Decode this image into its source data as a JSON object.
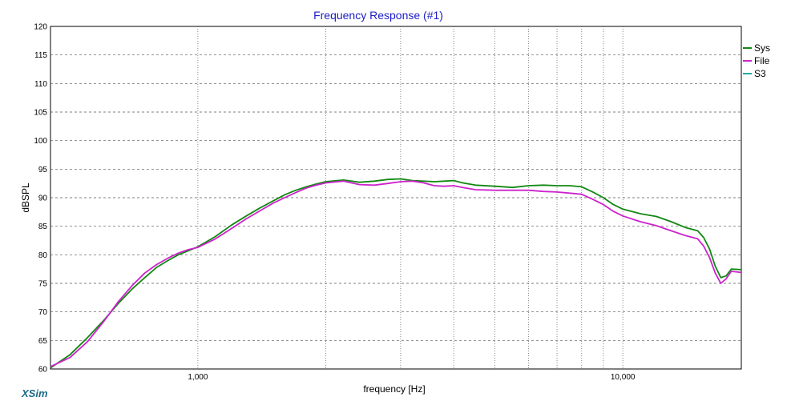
{
  "chart_data": {
    "type": "line",
    "title": "Frequency Response (#1)",
    "xlabel": "frequency [Hz]",
    "ylabel": "dBSPL",
    "x_scale": "log",
    "xlim": [
      450,
      19000
    ],
    "ylim": [
      60,
      120
    ],
    "yticks": [
      60,
      65,
      70,
      75,
      80,
      85,
      90,
      95,
      100,
      105,
      110,
      115,
      120
    ],
    "xtick_labels": [
      {
        "value": 1000,
        "label": "1,000"
      },
      {
        "value": 10000,
        "label": "10,000"
      }
    ],
    "x_gridlines": [
      1000,
      2000,
      3000,
      4000,
      5000,
      6000,
      7000,
      8000,
      9000,
      10000
    ],
    "grid": true,
    "legend_position": "right",
    "series": [
      {
        "name": "Sys",
        "color": "#118811",
        "x": [
          450,
          500,
          550,
          600,
          650,
          700,
          750,
          800,
          850,
          900,
          950,
          1000,
          1100,
          1200,
          1300,
          1400,
          1500,
          1600,
          1700,
          1800,
          1900,
          2000,
          2200,
          2400,
          2600,
          2800,
          3000,
          3200,
          3400,
          3600,
          3800,
          4000,
          4200,
          4500,
          5000,
          5500,
          6000,
          6500,
          7000,
          7500,
          8000,
          8500,
          9000,
          9500,
          10000,
          11000,
          12000,
          13000,
          14000,
          15000,
          15500,
          16000,
          16500,
          17000,
          17500,
          18000,
          19000
        ],
        "y": [
          60.2,
          62.5,
          65.5,
          68.5,
          71.5,
          74.0,
          76.0,
          77.8,
          79.0,
          80.0,
          80.7,
          81.4,
          83.2,
          85.2,
          86.8,
          88.2,
          89.4,
          90.5,
          91.3,
          91.9,
          92.4,
          92.8,
          93.1,
          92.7,
          92.9,
          93.2,
          93.3,
          93.0,
          92.9,
          92.8,
          92.9,
          93.0,
          92.6,
          92.2,
          92.0,
          91.8,
          92.1,
          92.2,
          92.1,
          92.1,
          91.9,
          91.0,
          90.0,
          88.8,
          88.0,
          87.2,
          86.7,
          85.8,
          84.8,
          84.2,
          83.0,
          81.0,
          78.0,
          76.0,
          76.3,
          77.5,
          77.4
        ]
      },
      {
        "name": "File",
        "color": "#cc22cc",
        "x": [
          450,
          500,
          550,
          600,
          650,
          700,
          750,
          800,
          850,
          900,
          950,
          1000,
          1100,
          1200,
          1300,
          1400,
          1500,
          1600,
          1700,
          1800,
          1900,
          2000,
          2200,
          2400,
          2600,
          2800,
          3000,
          3200,
          3400,
          3600,
          3800,
          4000,
          4200,
          4500,
          5000,
          5500,
          6000,
          6500,
          7000,
          7500,
          8000,
          8500,
          9000,
          9500,
          10000,
          11000,
          12000,
          13000,
          14000,
          15000,
          15500,
          16000,
          16500,
          17000,
          17500,
          18000,
          19000
        ],
        "y": [
          60.4,
          62.0,
          64.8,
          68.3,
          71.8,
          74.6,
          76.8,
          78.3,
          79.4,
          80.3,
          80.9,
          81.3,
          82.8,
          84.6,
          86.3,
          87.7,
          89.0,
          90.0,
          90.9,
          91.7,
          92.2,
          92.6,
          92.9,
          92.3,
          92.2,
          92.5,
          92.8,
          92.9,
          92.6,
          92.1,
          92.0,
          92.1,
          91.8,
          91.4,
          91.3,
          91.3,
          91.3,
          91.1,
          91.0,
          90.8,
          90.6,
          89.7,
          88.8,
          87.6,
          86.8,
          85.8,
          85.1,
          84.2,
          83.4,
          82.8,
          81.5,
          79.5,
          76.8,
          75.0,
          75.8,
          77.1,
          76.9
        ]
      },
      {
        "name": "S3",
        "color": "#22aaaa",
        "x": [],
        "y": []
      }
    ]
  },
  "brand_label": "XSim"
}
